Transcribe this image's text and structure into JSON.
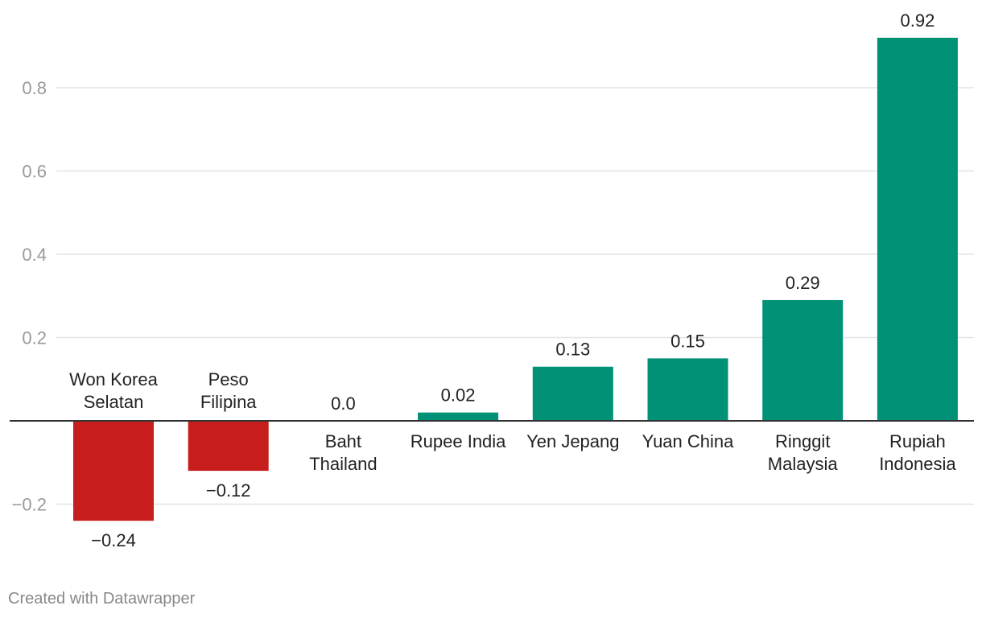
{
  "chart_data": {
    "type": "bar",
    "categories": [
      [
        "Won Korea",
        "Selatan"
      ],
      [
        "Peso",
        "Filipina"
      ],
      [
        "Baht",
        "Thailand"
      ],
      [
        "Rupee India"
      ],
      [
        "Yen Jepang"
      ],
      [
        "Yuan China"
      ],
      [
        "Ringgit",
        "Malaysia"
      ],
      [
        "Rupiah",
        "Indonesia"
      ]
    ],
    "values": [
      -0.24,
      -0.12,
      0.0,
      0.02,
      0.13,
      0.15,
      0.29,
      0.92
    ],
    "value_labels": [
      "−0.24",
      "−0.12",
      "0.0",
      "0.02",
      "0.13",
      "0.15",
      "0.29",
      "0.92"
    ],
    "yticks": [
      0.8,
      0.6,
      0.4,
      0.2,
      -0.2
    ],
    "ytick_labels": [
      "0.8",
      "0.6",
      "0.4",
      "0.2",
      "−0.2"
    ],
    "ylim": [
      -0.3,
      0.95
    ],
    "grid": true,
    "colors": {
      "positive": "#009177",
      "negative": "#c71e1d",
      "zero_line": "#333333",
      "grid": "#e3e3e3"
    }
  },
  "footer": {
    "credit": "Created with Datawrapper"
  }
}
